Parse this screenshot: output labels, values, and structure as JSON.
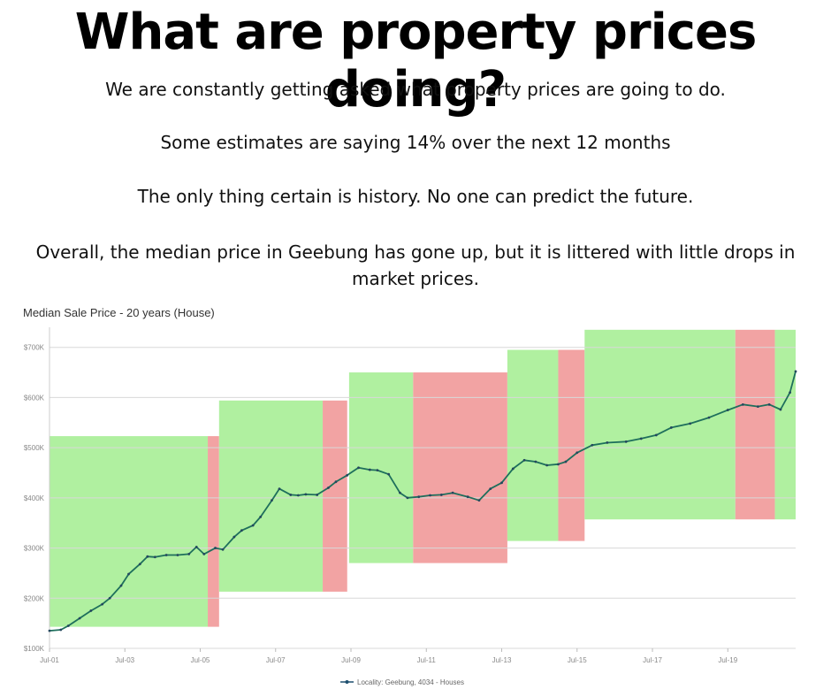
{
  "header": {
    "title": "What are property prices doing?",
    "paragraphs": [
      "We are constantly getting asked what property prices are going to do.",
      "Some estimates are saying 14% over the next 12 months",
      "The only thing certain is history.  No one can predict the future.",
      "Overall, the median price in Geebung has gone up, but it is littered with little drops in market prices."
    ]
  },
  "chart_data": {
    "type": "line",
    "title": "Median Sale Price - 20 years (House)",
    "xlabel": "",
    "ylabel": "",
    "y_tick_labels": [
      "$100K",
      "$200K",
      "$300K",
      "$400K",
      "$500K",
      "$600K",
      "$700K"
    ],
    "y_ticks": [
      100000,
      200000,
      300000,
      400000,
      500000,
      600000,
      700000
    ],
    "x_tick_labels": [
      "Jul-01",
      "Jul-03",
      "Jul-05",
      "Jul-07",
      "Jul-09",
      "Jul-11",
      "Jul-13",
      "Jul-15",
      "Jul-17",
      "Jul-19"
    ],
    "x_ticks": [
      2001.5,
      2003.5,
      2005.5,
      2007.5,
      2009.5,
      2011.5,
      2013.5,
      2015.5,
      2017.5,
      2019.5
    ],
    "xlim": [
      2001.5,
      2021.3
    ],
    "ylim": [
      100000,
      740000
    ],
    "grid": true,
    "legend_position": "bottom",
    "line_color": "#1e6f5c",
    "series": [
      {
        "name": "Locality: Geebung, 4034 - Houses",
        "x": [
          2001.5,
          2001.8,
          2002.0,
          2002.3,
          2002.6,
          2002.9,
          2003.1,
          2003.4,
          2003.6,
          2003.9,
          2004.1,
          2004.3,
          2004.6,
          2004.9,
          2005.2,
          2005.4,
          2005.6,
          2005.9,
          2006.1,
          2006.4,
          2006.6,
          2006.9,
          2007.1,
          2007.4,
          2007.6,
          2007.9,
          2008.1,
          2008.3,
          2008.6,
          2008.9,
          2009.1,
          2009.4,
          2009.7,
          2010.0,
          2010.2,
          2010.5,
          2010.8,
          2011.0,
          2011.3,
          2011.6,
          2011.9,
          2012.2,
          2012.6,
          2012.9,
          2013.2,
          2013.5,
          2013.8,
          2014.1,
          2014.4,
          2014.7,
          2015.0,
          2015.2,
          2015.5,
          2015.9,
          2016.3,
          2016.8,
          2017.2,
          2017.6,
          2018.0,
          2018.5,
          2019.0,
          2019.5,
          2019.9,
          2020.3,
          2020.6,
          2020.9,
          2021.15,
          2021.3
        ],
        "values": [
          135000,
          137000,
          145000,
          160000,
          175000,
          188000,
          200000,
          225000,
          248000,
          268000,
          283000,
          282000,
          286000,
          286000,
          288000,
          302000,
          288000,
          300000,
          297000,
          322000,
          335000,
          345000,
          362000,
          395000,
          418000,
          406000,
          405000,
          407000,
          406000,
          420000,
          432000,
          445000,
          460000,
          456000,
          455000,
          447000,
          410000,
          400000,
          402000,
          405000,
          406000,
          410000,
          402000,
          395000,
          418000,
          430000,
          458000,
          475000,
          472000,
          465000,
          467000,
          472000,
          490000,
          505000,
          510000,
          512000,
          518000,
          525000,
          540000,
          548000,
          560000,
          575000,
          586000,
          582000,
          586000,
          576000,
          610000,
          652000
        ]
      }
    ],
    "annotations": [
      {
        "type": "rise",
        "color": "#b0f0a0",
        "x": [
          2001.5,
          2005.7
        ],
        "y": [
          143000,
          523000
        ]
      },
      {
        "type": "drop",
        "color": "#f2a3a3",
        "x": [
          2005.7,
          2006.0
        ],
        "y": [
          143000,
          523000
        ]
      },
      {
        "type": "rise",
        "color": "#b0f0a0",
        "x": [
          2006.0,
          2008.75
        ],
        "y": [
          213000,
          594000
        ]
      },
      {
        "type": "drop",
        "color": "#f2a3a3",
        "x": [
          2008.75,
          2009.4
        ],
        "y": [
          213000,
          594000
        ]
      },
      {
        "type": "rise",
        "color": "#b0f0a0",
        "x": [
          2009.45,
          2011.15
        ],
        "y": [
          270000,
          650000
        ]
      },
      {
        "type": "drop",
        "color": "#f2a3a3",
        "x": [
          2011.15,
          2013.65
        ],
        "y": [
          270000,
          650000
        ]
      },
      {
        "type": "rise",
        "color": "#b0f0a0",
        "x": [
          2013.65,
          2015.0
        ],
        "y": [
          314000,
          695000
        ]
      },
      {
        "type": "drop",
        "color": "#f2a3a3",
        "x": [
          2015.0,
          2015.7
        ],
        "y": [
          314000,
          695000
        ]
      },
      {
        "type": "rise",
        "color": "#b0f0a0",
        "x": [
          2015.7,
          2019.7
        ],
        "y": [
          357000,
          735000
        ]
      },
      {
        "type": "drop",
        "color": "#f2a3a3",
        "x": [
          2019.7,
          2020.75
        ],
        "y": [
          357000,
          735000
        ]
      },
      {
        "type": "rise",
        "color": "#b0f0a0",
        "x": [
          2020.75,
          2021.3
        ],
        "y": [
          357000,
          735000
        ]
      }
    ]
  }
}
